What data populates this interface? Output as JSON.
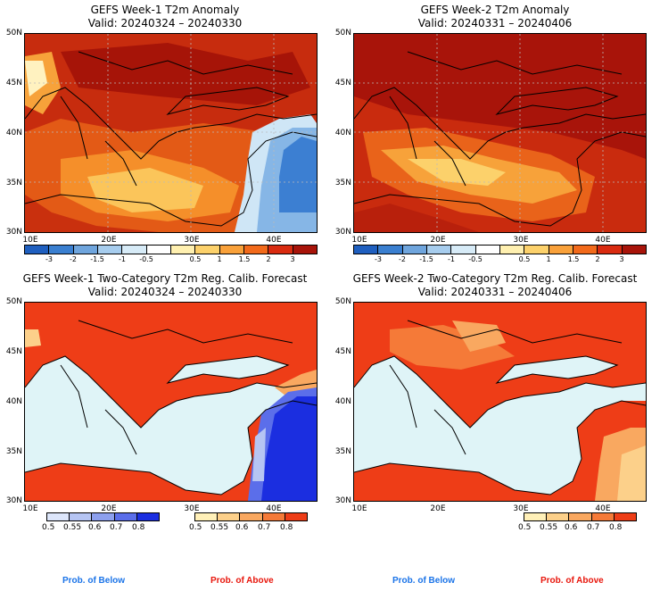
{
  "panels": [
    {
      "title": "GEFS Week-1 T2m Anomaly",
      "valid": "Valid: 20240324 – 20240330"
    },
    {
      "title": "GEFS Week-2 T2m Anomaly",
      "valid": "Valid: 20240331 – 20240406"
    },
    {
      "title": "GEFS Week-1 Two-Category T2m Reg. Calib. Forecast",
      "valid": "Valid: 20240324 – 20240330"
    },
    {
      "title": "GEFS Week-2 Two-Category T2m Reg. Calib. Forecast",
      "valid": "Valid: 20240331 – 20240406"
    }
  ],
  "lat_labels": [
    "50N",
    "45N",
    "40N",
    "35N",
    "30N"
  ],
  "lon_labels": [
    "10E",
    "20E",
    "30E",
    "40E"
  ],
  "anomaly_ticks": [
    "-3",
    "-2",
    "-1.5",
    "-1",
    "-0.5",
    "0.5",
    "1",
    "1.5",
    "2",
    "3"
  ],
  "anomaly_colors": [
    "#1f5fbf",
    "#3a7fd0",
    "#6fa5dd",
    "#a7cdee",
    "#d7ebf7",
    "#ffffff",
    "#fff0b0",
    "#fcd16b",
    "#f9a13a",
    "#f26a1b",
    "#d92b10",
    "#a8140a"
  ],
  "prob_ticks": [
    "0.5",
    "0.55",
    "0.6",
    "0.7",
    "0.8"
  ],
  "below_colors": [
    "#dde6fa",
    "#b6c5f3",
    "#8da0ee",
    "#5b6eea",
    "#1b2ee0"
  ],
  "above_colors": [
    "#fff0b8",
    "#fcd08a",
    "#f9a860",
    "#f57a38",
    "#ee3d17"
  ],
  "legend": {
    "below": "Prob. of Below",
    "above": "Prob. of Above"
  },
  "colors": {
    "below_text": "#1a73e8",
    "above_text": "#e8160c",
    "sea_prob": "#dff4f7"
  }
}
